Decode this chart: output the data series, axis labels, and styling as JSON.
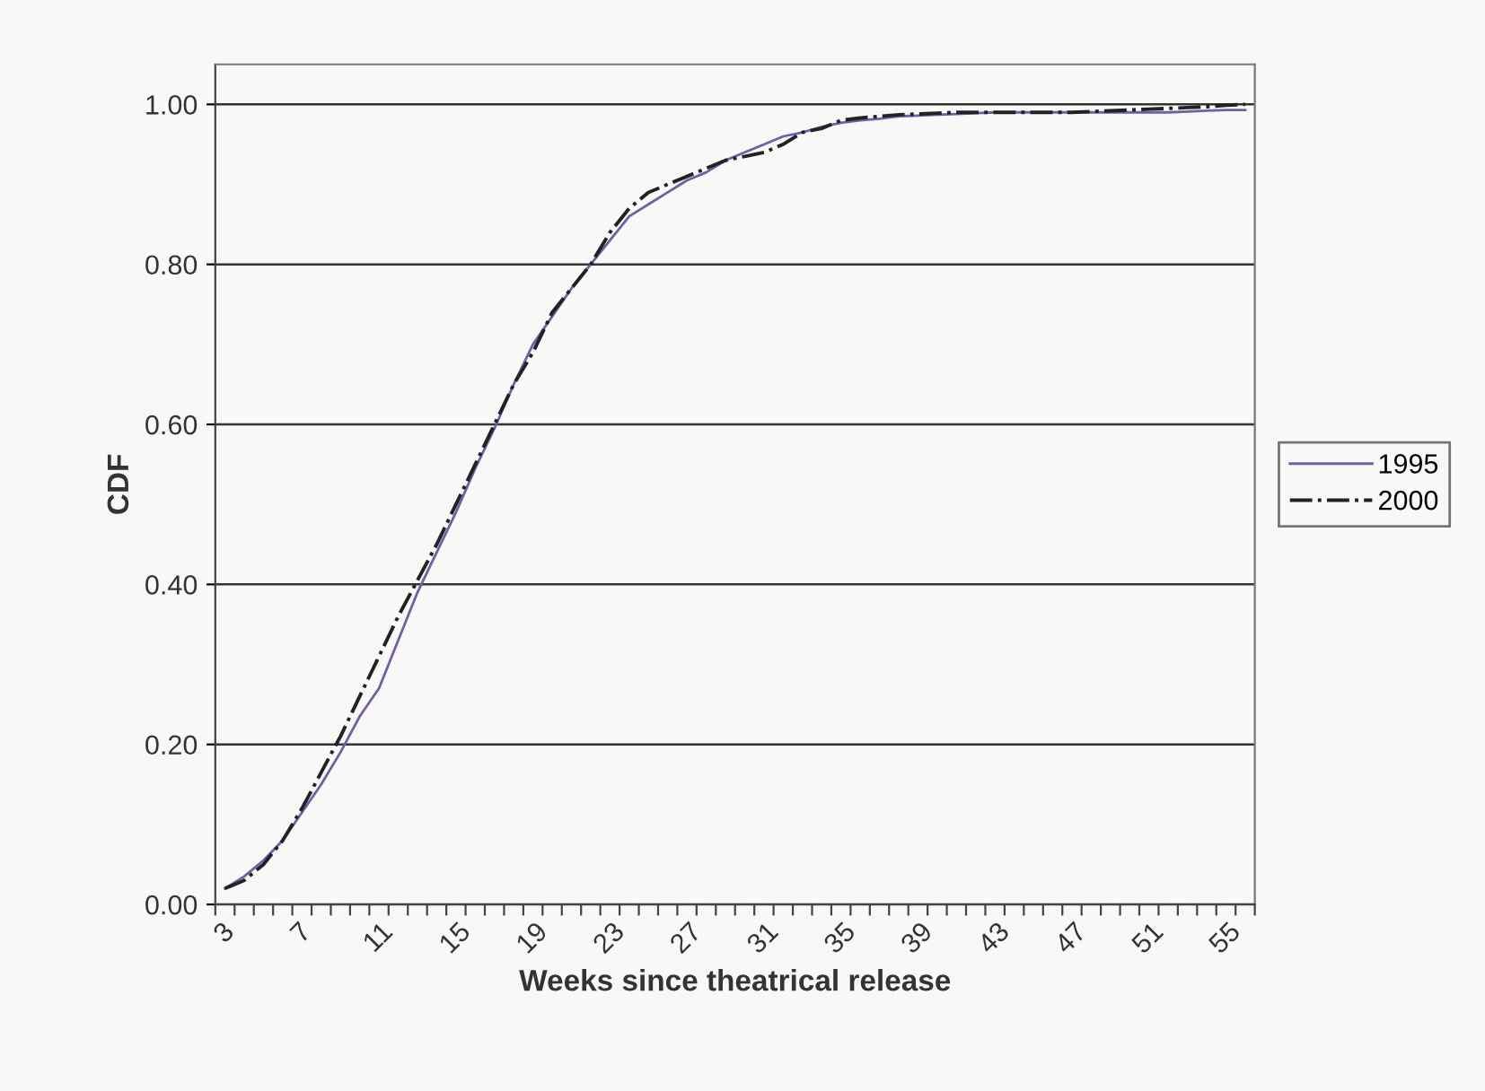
{
  "chart_data": {
    "type": "line",
    "xlabel": "Weeks since theatrical release",
    "ylabel": "CDF",
    "categories": [
      "3",
      null,
      null,
      null,
      "7",
      null,
      null,
      null,
      "11",
      null,
      null,
      null,
      "15",
      null,
      null,
      null,
      "19",
      null,
      null,
      null,
      "23",
      null,
      null,
      null,
      "27",
      null,
      null,
      null,
      "31",
      null,
      null,
      null,
      "35",
      null,
      null,
      null,
      "39",
      null,
      null,
      null,
      "43",
      null,
      null,
      null,
      "47",
      null,
      null,
      null,
      "51",
      null,
      null,
      null,
      "55",
      null
    ],
    "series": [
      {
        "name": "1995",
        "color": "#6f5fa8",
        "line_style": "solid",
        "values": [
          0.02,
          0.035,
          0.055,
          0.08,
          0.115,
          0.15,
          0.19,
          0.235,
          0.27,
          0.33,
          0.39,
          0.44,
          0.49,
          0.545,
          0.595,
          0.65,
          0.7,
          0.735,
          0.77,
          0.8,
          0.83,
          0.86,
          0.875,
          0.89,
          0.905,
          0.915,
          0.93,
          0.94,
          0.95,
          0.96,
          0.965,
          0.972,
          0.977,
          0.98,
          0.982,
          0.985,
          0.986,
          0.987,
          0.988,
          0.989,
          0.99,
          0.99,
          0.99,
          0.99,
          0.99,
          0.99,
          0.99,
          0.99,
          0.99,
          0.99,
          0.991,
          0.992,
          0.993,
          0.993
        ]
      },
      {
        "name": "2000",
        "color": "#222222",
        "line_style": "dashdot",
        "values": [
          0.02,
          0.03,
          0.05,
          0.08,
          0.12,
          0.165,
          0.21,
          0.26,
          0.31,
          0.36,
          0.405,
          0.45,
          0.5,
          0.55,
          0.6,
          0.65,
          0.69,
          0.74,
          0.77,
          0.8,
          0.84,
          0.87,
          0.89,
          0.9,
          0.91,
          0.92,
          0.93,
          0.935,
          0.94,
          0.95,
          0.965,
          0.97,
          0.98,
          0.983,
          0.985,
          0.987,
          0.988,
          0.989,
          0.99,
          0.99,
          0.99,
          0.99,
          0.99,
          0.99,
          0.99,
          0.991,
          0.992,
          0.993,
          0.994,
          0.995,
          0.996,
          0.997,
          0.999,
          1.0
        ]
      }
    ],
    "ylim": [
      0,
      1.05
    ],
    "yticks": [
      {
        "value": 0,
        "label": "0.00"
      },
      {
        "value": 0.2,
        "label": "0.20"
      },
      {
        "value": 0.4,
        "label": "0.40"
      },
      {
        "value": 0.6,
        "label": "0.60"
      },
      {
        "value": 0.8,
        "label": "0.80"
      },
      {
        "value": 1.0,
        "label": "1.00"
      }
    ],
    "grid": "y",
    "legend": "right"
  }
}
